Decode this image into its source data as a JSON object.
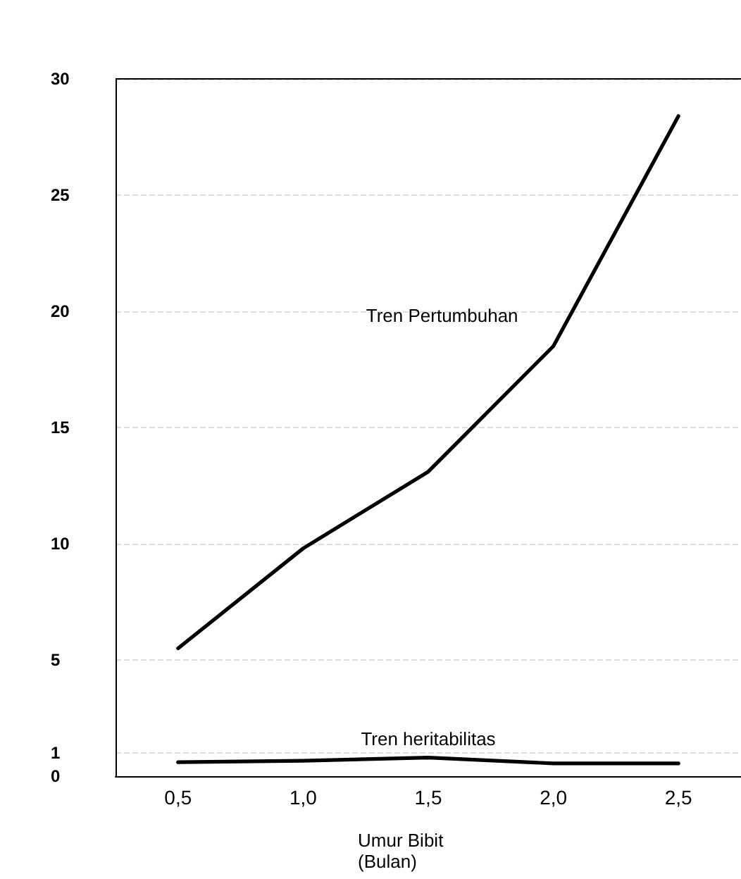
{
  "chart_data": {
    "type": "line",
    "xlabel": "Umur Bibit\n(Bulan)",
    "categories": [
      "0,5",
      "1,0",
      "1,5",
      "2,0",
      "2,5"
    ],
    "series": [
      {
        "name": "Tren Pertumbuhan",
        "color": "#000000",
        "values": [
          5.5,
          9.8,
          13.1,
          18.5,
          28.4
        ]
      },
      {
        "name": "Tren heritabilitas",
        "color": "#000000",
        "values": [
          0.6,
          0.66,
          0.8,
          0.55,
          0.55
        ]
      }
    ],
    "ylim": [
      0,
      30
    ],
    "yticks": [
      0,
      1,
      5,
      10,
      15,
      20,
      25,
      30
    ],
    "grid": "y",
    "legend": false,
    "marker": "none",
    "line_style": "solid"
  }
}
